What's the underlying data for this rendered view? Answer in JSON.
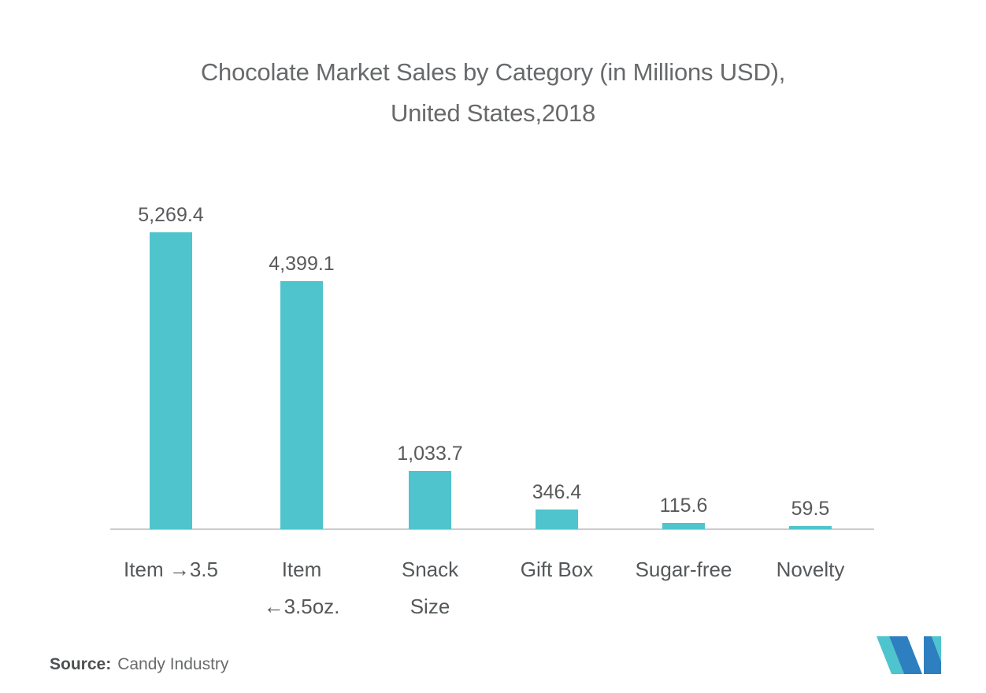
{
  "chart_data": {
    "type": "bar",
    "title": "Chocolate Market Sales by Category (in Millions USD), United States,2018",
    "title_lines": [
      "Chocolate Market Sales by Category (in Millions USD),",
      "United States,2018"
    ],
    "categories": [
      "Item →3.5",
      "Item ←3.5oz.",
      "Snack Size",
      "Gift Box",
      "Sugar-free",
      "Novelty"
    ],
    "category_label_lines": [
      [
        "Item →3.5"
      ],
      [
        "Item",
        "←3.5oz."
      ],
      [
        "Snack",
        "Size"
      ],
      [
        "Gift Box"
      ],
      [
        "Sugar-free"
      ],
      [
        "Novelty"
      ]
    ],
    "values": [
      5269.4,
      4399.1,
      1033.7,
      346.4,
      115.6,
      59.5
    ],
    "value_labels": [
      "5,269.4",
      "4,399.1",
      "1,033.7",
      "346.4",
      "115.6",
      "59.5"
    ],
    "xlabel": "",
    "ylabel": "",
    "ylim": [
      0,
      5600
    ],
    "grid": false,
    "legend": null,
    "bar_color": "#4FC4CC",
    "axis_line_color": "#CBCBCB"
  },
  "source": {
    "label": "Source:",
    "text": "Candy Industry"
  },
  "logo": {
    "name": "mordor-intelligence-logo",
    "teal": "#4EC4CE",
    "blue": "#2E7FC0"
  },
  "colors": {
    "title_text": "#67696B",
    "value_text": "#595A5C",
    "category_text": "#55585A",
    "source_label_text": "#4E5052",
    "source_text": "#696B6D",
    "background": "#FFFFFF"
  }
}
